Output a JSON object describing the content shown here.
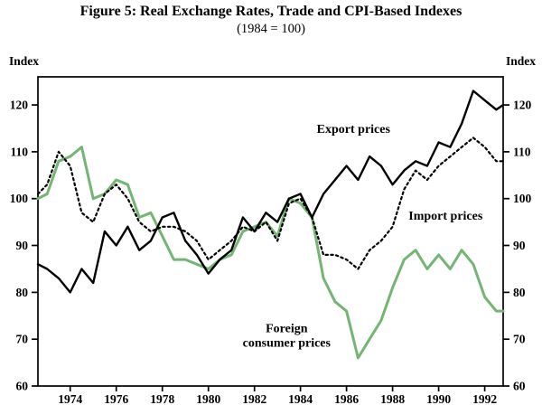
{
  "chart_data": {
    "type": "line",
    "title": "Figure 5: Real Exchange Rates, Trade and CPI-Based Indexes",
    "subtitle": "(1984 = 100)",
    "xlabel": "",
    "ylabel": "Index",
    "ylim": [
      60,
      126
    ],
    "yticks": [
      60,
      70,
      80,
      90,
      100,
      110,
      120
    ],
    "xlim": [
      1972.6,
      1992.8
    ],
    "xticks": [
      1974,
      1976,
      1978,
      1980,
      1982,
      1984,
      1986,
      1988,
      1990,
      1992
    ],
    "grid": false,
    "legend_position": "inline-annotations",
    "x": [
      1972.6,
      1973,
      1973.5,
      1974,
      1974.5,
      1975,
      1975.5,
      1976,
      1976.5,
      1977,
      1977.5,
      1978,
      1978.5,
      1979,
      1979.5,
      1980,
      1980.5,
      1981,
      1981.5,
      1982,
      1982.5,
      1983,
      1983.5,
      1984,
      1984.5,
      1985,
      1985.5,
      1986,
      1986.5,
      1987,
      1987.5,
      1988,
      1988.5,
      1989,
      1989.5,
      1990,
      1990.5,
      1991,
      1991.5,
      1992,
      1992.5,
      1992.8
    ],
    "series": [
      {
        "name": "Export prices",
        "color": "#000000",
        "style": "solid",
        "values": [
          86,
          85,
          83,
          80,
          85,
          82,
          93,
          90,
          94,
          89,
          91,
          96,
          97,
          91,
          88,
          84,
          87,
          89,
          96,
          93,
          97,
          95,
          100,
          101,
          96,
          101,
          104,
          107,
          104,
          109,
          107,
          103,
          106,
          108,
          107,
          112,
          111,
          116,
          123,
          121,
          119,
          120
        ]
      },
      {
        "name": "Import prices",
        "color": "#000000",
        "style": "dotted",
        "values": [
          101,
          103,
          110,
          107,
          97,
          95,
          101,
          103,
          100,
          95,
          93,
          94,
          94,
          93,
          91,
          87,
          89,
          91,
          94,
          93,
          95,
          91,
          99,
          100,
          96,
          88,
          88,
          87,
          85,
          89,
          91,
          94,
          102,
          106,
          104,
          107,
          109,
          111,
          113,
          111,
          108,
          108
        ]
      },
      {
        "name": "Foreign consumer prices",
        "color": "#74b573",
        "style": "solid",
        "values": [
          100,
          101,
          108,
          109,
          111,
          100,
          101,
          104,
          103,
          96,
          97,
          92,
          87,
          87,
          86,
          85,
          87,
          88,
          93,
          94,
          95,
          92,
          100,
          99,
          96,
          83,
          78,
          76,
          66,
          70,
          74,
          81,
          87,
          89,
          85,
          88,
          85,
          89,
          86,
          79,
          76,
          76
        ]
      }
    ],
    "annotations": [
      {
        "text": "Export prices",
        "x": 1986.3,
        "y": 114
      },
      {
        "text": "Import prices",
        "x": 1990.3,
        "y": 95.5
      },
      {
        "lines": [
          "Foreign",
          "consumer prices"
        ],
        "x": 1983.4,
        "y": 71.5
      }
    ]
  }
}
